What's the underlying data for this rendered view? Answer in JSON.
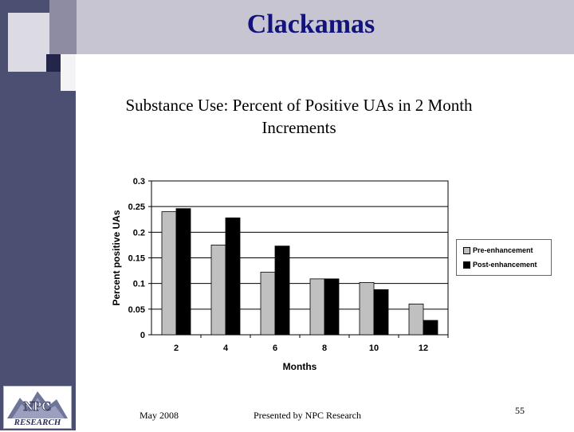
{
  "slide": {
    "title": "Clackamas",
    "subtitle_line1": "Substance Use: Percent of Positive UAs in 2 Month",
    "subtitle_line2": "Increments"
  },
  "colors": {
    "pre": "#c0c0c0",
    "post": "#000000",
    "title": "#13137a",
    "band": "#4b4f71"
  },
  "chart_data": {
    "type": "bar",
    "xlabel": "Months",
    "ylabel": "Percent positive UAs",
    "categories": [
      "2",
      "4",
      "6",
      "8",
      "10",
      "12"
    ],
    "ylim": [
      0,
      0.3
    ],
    "yticks": [
      "0",
      "0.05",
      "0.1",
      "0.15",
      "0.2",
      "0.25",
      "0.3"
    ],
    "grid": true,
    "legend_position": "right",
    "series": [
      {
        "name": "Pre-enhancement",
        "values": [
          0.24,
          0.175,
          0.122,
          0.109,
          0.102,
          0.06
        ]
      },
      {
        "name": "Post-enhancement",
        "values": [
          0.246,
          0.228,
          0.173,
          0.109,
          0.088,
          0.028
        ]
      }
    ]
  },
  "logo": {
    "line1": "NPC",
    "line2": "RESEARCH"
  },
  "footer": {
    "date": "May 2008",
    "presenter": "Presented by NPC Research",
    "page": "55"
  }
}
